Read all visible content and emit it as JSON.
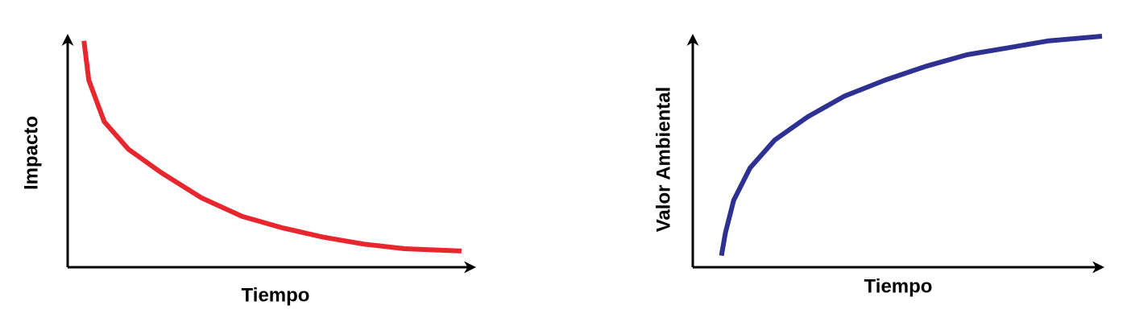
{
  "chart_data": [
    {
      "type": "line",
      "x_label": "Tiempo",
      "y_label": "Impacto",
      "xlim": [
        0,
        100
      ],
      "ylim": [
        0,
        100
      ],
      "color": "#e8262e",
      "x": [
        4,
        5.2,
        9,
        15,
        23,
        33,
        43,
        53,
        63,
        73,
        83,
        97
      ],
      "values": [
        98,
        81,
        63,
        51,
        41,
        30,
        22,
        17,
        13,
        10,
        8,
        7
      ]
    },
    {
      "type": "line",
      "x_label": "Tiempo",
      "y_label": "Valor Ambiental",
      "xlim": [
        0,
        100
      ],
      "ylim": [
        0,
        100
      ],
      "color": "#2e3192",
      "x": [
        7,
        8,
        10,
        14,
        20,
        28,
        37,
        47,
        57,
        67,
        77,
        87,
        100
      ],
      "values": [
        5,
        15,
        29,
        43,
        55,
        65,
        74,
        81,
        87,
        92,
        95,
        98,
        100
      ]
    }
  ]
}
